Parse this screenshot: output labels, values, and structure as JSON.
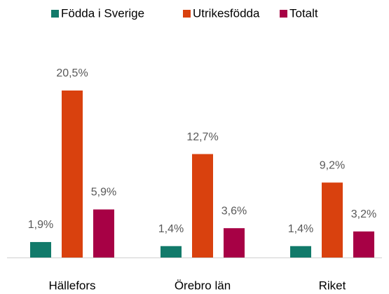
{
  "chart_data": {
    "type": "bar",
    "categories": [
      "Hällefors",
      "Örebro län",
      "Riket"
    ],
    "series": [
      {
        "name": "Födda i Sverige",
        "color": "#127a6a",
        "values": [
          1.9,
          1.4,
          1.4
        ],
        "value_labels": [
          "1,9%",
          "1,4%",
          "1,4%"
        ]
      },
      {
        "name": "Utrikesfödda",
        "color": "#d9410e",
        "values": [
          20.5,
          12.7,
          9.2
        ],
        "value_labels": [
          "20,5%",
          "12,7%",
          "9,2%"
        ]
      },
      {
        "name": "Totalt",
        "color": "#a70145",
        "values": [
          5.9,
          3.6,
          3.2
        ],
        "value_labels": [
          "5,9%",
          "3,6%",
          "3,2%"
        ]
      }
    ],
    "legend": "top"
  }
}
